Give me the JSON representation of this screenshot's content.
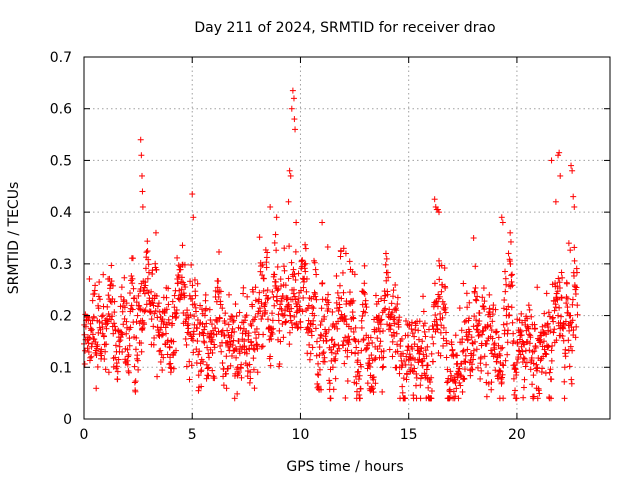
{
  "chart_data": {
    "type": "scatter",
    "title": "Day 211 of 2024, SRMTID for receiver drao",
    "xlabel": "GPS time / hours",
    "ylabel": "SRMTID / TECUs",
    "xlim": [
      0,
      24.3
    ],
    "ylim": [
      0,
      0.7
    ],
    "x_ticks": [
      0,
      5,
      10,
      15,
      20
    ],
    "x_tick_labels": [
      "0",
      "5",
      "10",
      "15",
      "20"
    ],
    "y_ticks": [
      0,
      0.1,
      0.2,
      0.3,
      0.4,
      0.5,
      0.6,
      0.7
    ],
    "y_tick_labels": [
      "0",
      "0.1",
      "0.2",
      "0.3",
      "0.4",
      "0.5",
      "0.6",
      "0.7"
    ],
    "grid": true,
    "marker": "+",
    "series_color": "#ff0000",
    "x_range_data": [
      0,
      22.8
    ],
    "sample_interval_hours": 0.0125,
    "profile_anchors_x": [
      0,
      0.5,
      1,
      1.5,
      2,
      2.4,
      2.7,
      3.0,
      3.5,
      4,
      4.5,
      5,
      5.5,
      6,
      6.5,
      7,
      7.5,
      8,
      8.5,
      9,
      9.5,
      9.9,
      10.5,
      11,
      11.5,
      12,
      12.5,
      13,
      13.5,
      14,
      14.5,
      15,
      15.5,
      16,
      16.3,
      16.7,
      17,
      17.5,
      18,
      18.5,
      19,
      19.5,
      20,
      20.5,
      21,
      21.5,
      22,
      22.5,
      22.8
    ],
    "profile_anchors_y": [
      0.14,
      0.19,
      0.2,
      0.17,
      0.15,
      0.14,
      0.2,
      0.19,
      0.18,
      0.17,
      0.16,
      0.15,
      0.13,
      0.15,
      0.17,
      0.16,
      0.17,
      0.2,
      0.22,
      0.24,
      0.23,
      0.22,
      0.18,
      0.17,
      0.16,
      0.18,
      0.15,
      0.14,
      0.14,
      0.13,
      0.12,
      0.12,
      0.14,
      0.12,
      0.2,
      0.16,
      0.15,
      0.16,
      0.17,
      0.15,
      0.16,
      0.15,
      0.13,
      0.14,
      0.12,
      0.15,
      0.2,
      0.18,
      0.2
    ],
    "spikes": [
      {
        "x": 2.62,
        "y": 0.54
      },
      {
        "x": 2.65,
        "y": 0.51
      },
      {
        "x": 2.68,
        "y": 0.47
      },
      {
        "x": 2.7,
        "y": 0.44
      },
      {
        "x": 2.72,
        "y": 0.41
      },
      {
        "x": 5.0,
        "y": 0.435
      },
      {
        "x": 5.05,
        "y": 0.39
      },
      {
        "x": 8.6,
        "y": 0.41
      },
      {
        "x": 8.9,
        "y": 0.39
      },
      {
        "x": 9.6,
        "y": 0.6
      },
      {
        "x": 9.65,
        "y": 0.635
      },
      {
        "x": 9.7,
        "y": 0.62
      },
      {
        "x": 9.72,
        "y": 0.58
      },
      {
        "x": 9.75,
        "y": 0.56
      },
      {
        "x": 9.5,
        "y": 0.48
      },
      {
        "x": 9.55,
        "y": 0.47
      },
      {
        "x": 9.45,
        "y": 0.42
      },
      {
        "x": 9.8,
        "y": 0.38
      },
      {
        "x": 11.0,
        "y": 0.38
      },
      {
        "x": 12.0,
        "y": 0.33
      },
      {
        "x": 12.1,
        "y": 0.32
      },
      {
        "x": 16.2,
        "y": 0.425
      },
      {
        "x": 16.25,
        "y": 0.41
      },
      {
        "x": 16.3,
        "y": 0.405
      },
      {
        "x": 16.35,
        "y": 0.405
      },
      {
        "x": 16.4,
        "y": 0.4
      },
      {
        "x": 18.0,
        "y": 0.35
      },
      {
        "x": 19.3,
        "y": 0.39
      },
      {
        "x": 19.35,
        "y": 0.38
      },
      {
        "x": 21.6,
        "y": 0.5
      },
      {
        "x": 21.9,
        "y": 0.51
      },
      {
        "x": 21.95,
        "y": 0.515
      },
      {
        "x": 22.0,
        "y": 0.47
      },
      {
        "x": 21.8,
        "y": 0.42
      },
      {
        "x": 22.5,
        "y": 0.49
      },
      {
        "x": 22.55,
        "y": 0.48
      },
      {
        "x": 22.6,
        "y": 0.43
      },
      {
        "x": 22.65,
        "y": 0.41
      },
      {
        "x": 22.4,
        "y": 0.34
      }
    ]
  }
}
